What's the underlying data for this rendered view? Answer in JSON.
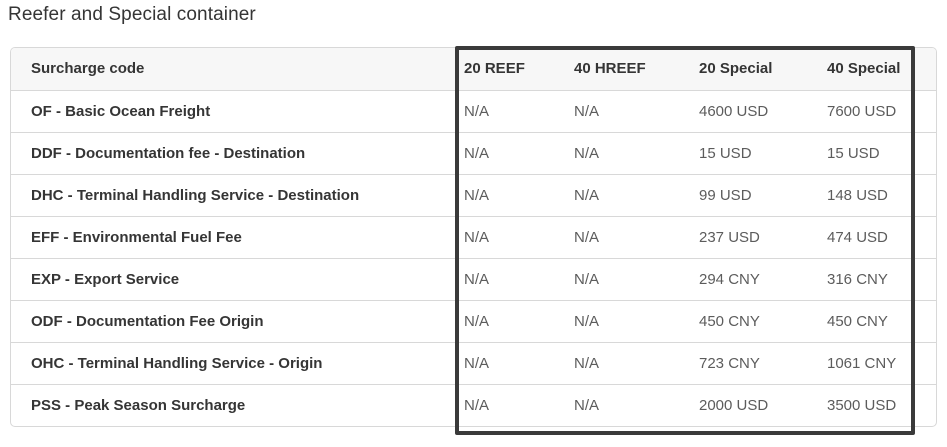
{
  "page": {
    "title": "Reefer and Special container"
  },
  "colors": {
    "highlight_border": "#3a3a3a",
    "header_bg": "#f7f7f7",
    "text_dark": "#353535",
    "text_muted": "#5c5c5c",
    "divider": "#d8d8d8"
  },
  "table": {
    "columns": [
      {
        "label": "Surcharge code"
      },
      {
        "label": "20 REEF"
      },
      {
        "label": "40 HREEF"
      },
      {
        "label": "20 Special"
      },
      {
        "label": "40 Special"
      }
    ],
    "rows": [
      {
        "code": "OF - Basic Ocean Freight",
        "values": [
          "N/A",
          "N/A",
          "4600 USD",
          "7600 USD"
        ]
      },
      {
        "code": "DDF - Documentation fee - Destination",
        "values": [
          "N/A",
          "N/A",
          "15 USD",
          "15 USD"
        ]
      },
      {
        "code": "DHC - Terminal Handling Service - Destination",
        "values": [
          "N/A",
          "N/A",
          "99 USD",
          "148 USD"
        ]
      },
      {
        "code": "EFF - Environmental Fuel Fee",
        "values": [
          "N/A",
          "N/A",
          "237 USD",
          "474 USD"
        ]
      },
      {
        "code": "EXP - Export Service",
        "values": [
          "N/A",
          "N/A",
          "294 CNY",
          "316 CNY"
        ]
      },
      {
        "code": "ODF - Documentation Fee Origin",
        "values": [
          "N/A",
          "N/A",
          "450 CNY",
          "450 CNY"
        ]
      },
      {
        "code": "OHC - Terminal Handling Service - Origin",
        "values": [
          "N/A",
          "N/A",
          "723 CNY",
          "1061 CNY"
        ]
      },
      {
        "code": "PSS - Peak Season Surcharge",
        "values": [
          "N/A",
          "N/A",
          "2000 USD",
          "3500 USD"
        ]
      }
    ],
    "highlight": {
      "columns": [
        "20 REEF",
        "40 HREEF",
        "20 Special",
        "40 Special"
      ]
    }
  }
}
